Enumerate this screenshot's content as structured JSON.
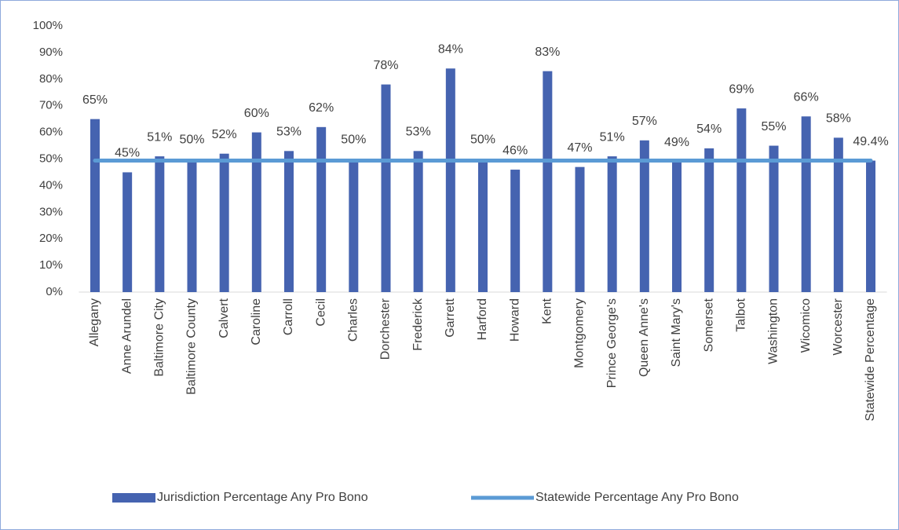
{
  "chart_data": {
    "type": "bar",
    "categories": [
      "Allegany",
      "Anne Arundel",
      "Baltimore City",
      "Baltimore County",
      "Calvert",
      "Caroline",
      "Carroll",
      "Cecil",
      "Charles",
      "Dorchester",
      "Frederick",
      "Garrett",
      "Harford",
      "Howard",
      "Kent",
      "Montgomery",
      "Prince George's",
      "Queen Anne's",
      "Saint Mary's",
      "Somerset",
      "Talbot",
      "Washington",
      "Wicomico",
      "Worcester",
      "Statewide Percentage"
    ],
    "series": [
      {
        "name": "Jurisdiction Percentage Any Pro Bono",
        "type": "bar",
        "color": "#4563b0",
        "values": [
          65,
          45,
          51,
          50,
          52,
          60,
          53,
          62,
          50,
          78,
          53,
          84,
          50,
          46,
          83,
          47,
          51,
          57,
          49,
          54,
          69,
          55,
          66,
          58,
          49.4
        ],
        "value_labels": [
          "65%",
          "45%",
          "51%",
          "50%",
          "52%",
          "60%",
          "53%",
          "62%",
          "50%",
          "78%",
          "53%",
          "84%",
          "50%",
          "46%",
          "83%",
          "47%",
          "51%",
          "57%",
          "49%",
          "54%",
          "69%",
          "55%",
          "66%",
          "58%",
          "49.4%"
        ]
      },
      {
        "name": "Statewide Percentage Any Pro Bono",
        "type": "line",
        "color": "#5b9bd5",
        "values": [
          49.4,
          49.4,
          49.4,
          49.4,
          49.4,
          49.4,
          49.4,
          49.4,
          49.4,
          49.4,
          49.4,
          49.4,
          49.4,
          49.4,
          49.4,
          49.4,
          49.4,
          49.4,
          49.4,
          49.4,
          49.4,
          49.4,
          49.4,
          49.4,
          49.4
        ]
      }
    ],
    "ylim": [
      0,
      100
    ],
    "yticks": [
      {
        "value": 0,
        "label": "0%"
      },
      {
        "value": 10,
        "label": "10%"
      },
      {
        "value": 20,
        "label": "20%"
      },
      {
        "value": 30,
        "label": "30%"
      },
      {
        "value": 40,
        "label": "40%"
      },
      {
        "value": 50,
        "label": "50%"
      },
      {
        "value": 60,
        "label": "60%"
      },
      {
        "value": 70,
        "label": "70%"
      },
      {
        "value": 80,
        "label": "80%"
      },
      {
        "value": 90,
        "label": "90%"
      },
      {
        "value": 100,
        "label": "100%"
      }
    ],
    "legend": "bottom"
  }
}
